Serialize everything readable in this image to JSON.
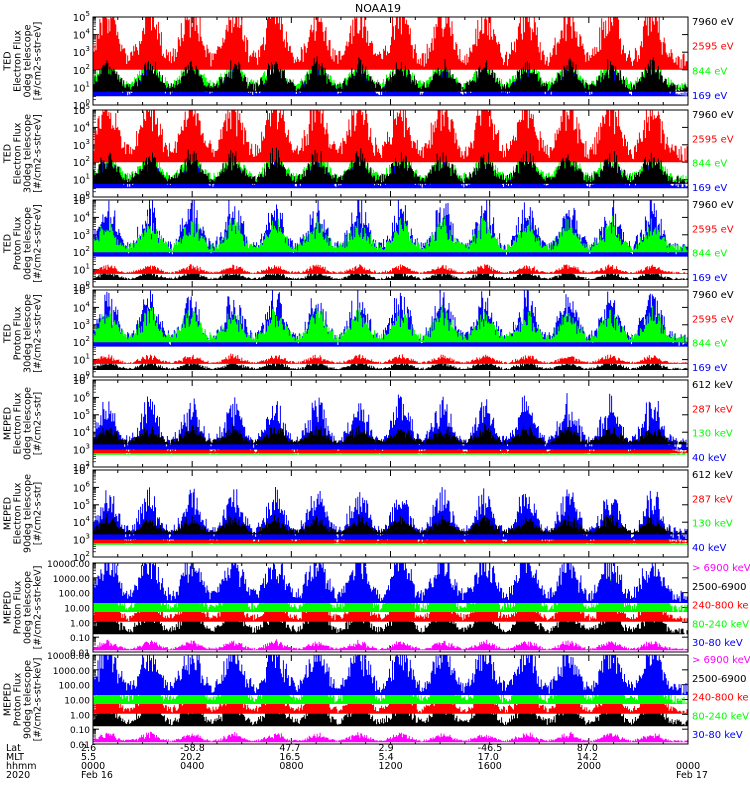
{
  "title": "NOAA19",
  "colors": {
    "black": "#000000",
    "red": "#ff0000",
    "green": "#00ff00",
    "blue": "#0000ff",
    "magenta": "#ff00ff"
  },
  "chart_data": [
    {
      "type": "line",
      "ylabel": [
        "TED",
        "Electron Flux",
        "0deg telescope",
        "[#/cm2-s-str-eV]"
      ],
      "y_scale": "log",
      "ylim": [
        1,
        100000
      ],
      "yticks": [
        "10^0",
        "10^1",
        "10^2",
        "10^3",
        "10^4",
        "10^5"
      ],
      "legend": [
        {
          "name": "7960 eV",
          "color": "black"
        },
        {
          "name": "2595 eV",
          "color": "red"
        },
        {
          "name": "844 eV",
          "color": "green"
        },
        {
          "name": "169 eV",
          "color": "blue"
        }
      ]
    },
    {
      "type": "line",
      "ylabel": [
        "TED",
        "Electron Flux",
        "30deg telescope",
        "[#/cm2-s-str-eV]"
      ],
      "y_scale": "log",
      "ylim": [
        1,
        100000
      ],
      "yticks": [
        "10^0",
        "10^1",
        "10^2",
        "10^3",
        "10^4",
        "10^5"
      ],
      "legend": [
        {
          "name": "7960 eV",
          "color": "black"
        },
        {
          "name": "2595 eV",
          "color": "red"
        },
        {
          "name": "844 eV",
          "color": "green"
        },
        {
          "name": "169 eV",
          "color": "blue"
        }
      ]
    },
    {
      "type": "line",
      "ylabel": [
        "TED",
        "Proton Flux",
        "0deg telescope",
        "[#/cm2-s-str-eV]"
      ],
      "y_scale": "log",
      "ylim": [
        1,
        100000
      ],
      "yticks": [
        "10^0",
        "10^1",
        "10^2",
        "10^3",
        "10^4",
        "10^5"
      ],
      "legend": [
        {
          "name": "7960 eV",
          "color": "black"
        },
        {
          "name": "2595 eV",
          "color": "red"
        },
        {
          "name": "844 eV",
          "color": "green"
        },
        {
          "name": "169 eV",
          "color": "blue"
        }
      ]
    },
    {
      "type": "line",
      "ylabel": [
        "TED",
        "Proton Flux",
        "30deg telescope",
        "[#/cm2-s-str-eV]"
      ],
      "y_scale": "log",
      "ylim": [
        1,
        100000
      ],
      "yticks": [
        "10^0",
        "10^1",
        "10^2",
        "10^3",
        "10^4",
        "10^5"
      ],
      "legend": [
        {
          "name": "7960 eV",
          "color": "black"
        },
        {
          "name": "2595 eV",
          "color": "red"
        },
        {
          "name": "844 eV",
          "color": "green"
        },
        {
          "name": "169 eV",
          "color": "blue"
        }
      ]
    },
    {
      "type": "line",
      "ylabel": [
        "MEPED",
        "Electron Flux",
        "0deg telescope",
        "[#/cm2-s-str]"
      ],
      "y_scale": "log",
      "ylim": [
        100,
        10000000
      ],
      "yticks": [
        "10^2",
        "10^3",
        "10^4",
        "10^5",
        "10^6",
        "10^7"
      ],
      "legend": [
        {
          "name": "612 keV",
          "color": "black"
        },
        {
          "name": "287 keV",
          "color": "red"
        },
        {
          "name": "130 keV",
          "color": "green"
        },
        {
          "name": "40 keV",
          "color": "blue"
        }
      ]
    },
    {
      "type": "line",
      "ylabel": [
        "MEPED",
        "Electron Flux",
        "90deg telescope",
        "[#/cm2-s-str]"
      ],
      "y_scale": "log",
      "ylim": [
        100,
        10000000
      ],
      "yticks": [
        "10^2",
        "10^3",
        "10^4",
        "10^5",
        "10^6",
        "10^7"
      ],
      "legend": [
        {
          "name": "612 keV",
          "color": "black"
        },
        {
          "name": "287 keV",
          "color": "red"
        },
        {
          "name": "130 keV",
          "color": "green"
        },
        {
          "name": "40 keV",
          "color": "blue"
        }
      ]
    },
    {
      "type": "line",
      "ylabel": [
        "MEPED",
        "Proton Flux",
        "0deg telescope",
        "[#/cm2-s-str-keV]"
      ],
      "y_scale": "log",
      "ylim": [
        0.01,
        10000
      ],
      "yticks": [
        "0.01",
        "0.10",
        "1.00",
        "10.00",
        "100.00",
        "1000.00",
        "10000.00"
      ],
      "legend": [
        {
          "name": "> 6900 keV",
          "color": "magenta"
        },
        {
          "name": "2500-6900",
          "color": "black"
        },
        {
          "name": "240-800 ke",
          "color": "red"
        },
        {
          "name": "80-240 keV",
          "color": "green"
        },
        {
          "name": "30-80 keV",
          "color": "blue"
        }
      ]
    },
    {
      "type": "line",
      "ylabel": [
        "MEPED",
        "Proton Flux",
        "90deg telescope",
        "[#/cm2-s-str-keV]"
      ],
      "y_scale": "log",
      "ylim": [
        0.01,
        10000
      ],
      "yticks": [
        "0.01",
        "0.10",
        "1.00",
        "10.00",
        "100.00",
        "1000.00",
        "10000.00"
      ],
      "legend": [
        {
          "name": "> 6900 keV",
          "color": "magenta"
        },
        {
          "name": "2500-6900",
          "color": "black"
        },
        {
          "name": "240-800 ke",
          "color": "red"
        },
        {
          "name": "80-240 keV",
          "color": "green"
        },
        {
          "name": "30-80 keV",
          "color": "blue"
        }
      ]
    }
  ],
  "x_axis": {
    "row_labels": [
      "Lat",
      "MLT",
      "hhmm",
      "2020"
    ],
    "columns": [
      {
        "lat": "2.6",
        "mlt": "5.5",
        "hhmm": "0000",
        "date": "Feb 16"
      },
      {
        "lat": "-58.8",
        "mlt": "20.2",
        "hhmm": "0400",
        "date": ""
      },
      {
        "lat": "47.7",
        "mlt": "16.5",
        "hhmm": "0800",
        "date": ""
      },
      {
        "lat": "2.9",
        "mlt": "5.4",
        "hhmm": "1200",
        "date": ""
      },
      {
        "lat": "-46.5",
        "mlt": "17.0",
        "hhmm": "1600",
        "date": ""
      },
      {
        "lat": "87.0",
        "mlt": "14.2",
        "hhmm": "2000",
        "date": ""
      },
      {
        "lat": "",
        "mlt": "",
        "hhmm": "0000",
        "date": "Feb 17"
      }
    ]
  }
}
